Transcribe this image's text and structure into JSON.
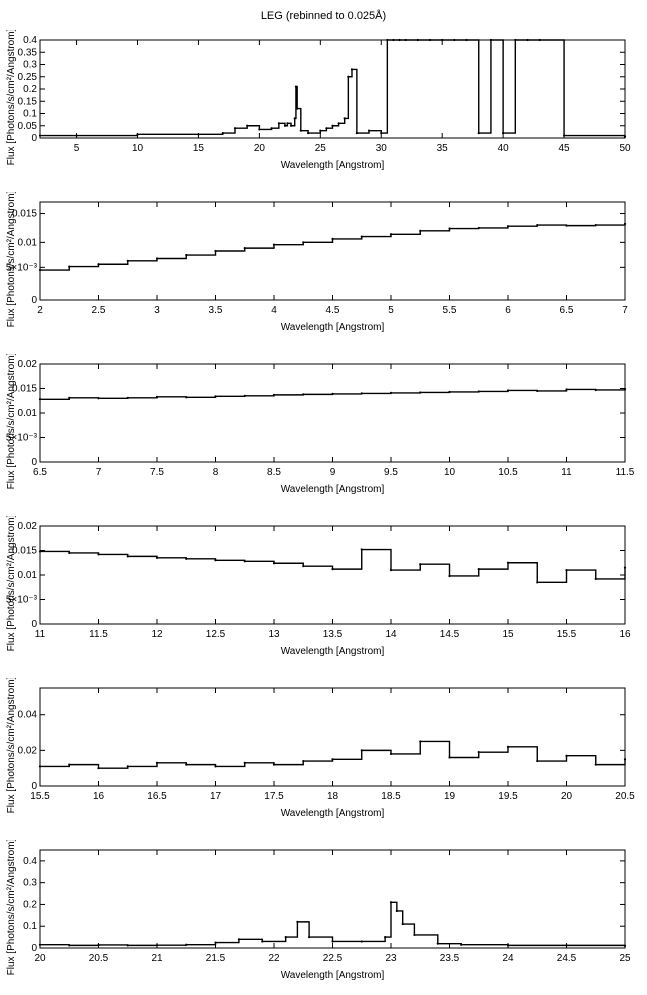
{
  "figure": {
    "title": "LEG (rebinned to 0.025Å)"
  },
  "chart_data": [
    {
      "type": "line",
      "style": "step",
      "title": "LEG (rebinned to 0.025Å)",
      "xlabel": "Wavelength [Angstrom]",
      "ylabel": "Flux [Photons/s/cm²/Angstrom]",
      "xlim": [
        2,
        50
      ],
      "ylim": [
        0,
        0.4
      ],
      "xticks": [
        "5",
        "10",
        "15",
        "20",
        "25",
        "30",
        "35",
        "40",
        "45",
        "50"
      ],
      "yticks": [
        "0",
        "0.05",
        "0.1",
        "0.15",
        "0.2",
        "0.25",
        "0.3",
        "0.35",
        "0.4"
      ],
      "x": [
        2,
        5,
        10,
        15,
        17,
        18,
        19,
        20,
        21,
        21.6,
        22.1,
        22.3,
        22.6,
        22.9,
        23.0,
        23.1,
        23.4,
        24,
        25,
        25.5,
        26,
        26.5,
        27,
        27.3,
        27.6,
        28,
        29,
        30,
        30.5,
        31,
        31.5,
        32,
        33,
        34,
        35,
        36,
        37,
        38,
        39,
        40,
        41,
        42,
        43,
        45,
        50
      ],
      "values": [
        0.01,
        0.01,
        0.015,
        0.015,
        0.02,
        0.04,
        0.05,
        0.035,
        0.04,
        0.06,
        0.05,
        0.06,
        0.05,
        0.08,
        0.21,
        0.12,
        0.03,
        0.02,
        0.03,
        0.04,
        0.05,
        0.06,
        0.08,
        0.25,
        0.28,
        0.02,
        0.03,
        0.02,
        0.4,
        0.4,
        0.4,
        0.4,
        0.4,
        0.4,
        0.4,
        0.4,
        0.4,
        0.02,
        0.4,
        0.02,
        0.4,
        0.4,
        0.4,
        0.01,
        0.005
      ]
    },
    {
      "type": "line",
      "style": "step",
      "xlabel": "Wavelength [Angstrom]",
      "ylabel": "Flux [Photons/s/cm²/Angstrom]",
      "xlim": [
        2,
        7
      ],
      "ylim": [
        0,
        0.017
      ],
      "xticks": [
        "2",
        "2.5",
        "3",
        "3.5",
        "4",
        "4.5",
        "5",
        "5.5",
        "6",
        "6.5",
        "7"
      ],
      "yticks": [
        "0",
        "5×10⁻³",
        "0.01",
        "0.015"
      ],
      "x": [
        2,
        2.25,
        2.5,
        2.75,
        3,
        3.25,
        3.5,
        3.75,
        4,
        4.25,
        4.5,
        4.75,
        5,
        5.25,
        5.5,
        5.75,
        6,
        6.25,
        6.5,
        6.75,
        7
      ],
      "values": [
        0.0052,
        0.0058,
        0.0062,
        0.0068,
        0.0072,
        0.0078,
        0.0085,
        0.009,
        0.0096,
        0.01,
        0.0106,
        0.011,
        0.0114,
        0.012,
        0.0124,
        0.0125,
        0.0128,
        0.013,
        0.0129,
        0.013,
        0.0132
      ]
    },
    {
      "type": "line",
      "style": "step",
      "xlabel": "Wavelength [Angstrom]",
      "ylabel": "Flux [Photons/s/cm²/Angstrom]",
      "xlim": [
        6.5,
        11.5
      ],
      "ylim": [
        0,
        0.02
      ],
      "xticks": [
        "6.5",
        "7",
        "7.5",
        "8",
        "8.5",
        "9",
        "9.5",
        "10",
        "10.5",
        "11",
        "11.5"
      ],
      "yticks": [
        "0",
        "5×10⁻³",
        "0.01",
        "0.015",
        "0.02"
      ],
      "x": [
        6.5,
        6.75,
        7,
        7.25,
        7.5,
        7.75,
        8,
        8.25,
        8.5,
        8.75,
        9,
        9.25,
        9.5,
        9.75,
        10,
        10.25,
        10.5,
        10.75,
        11,
        11.25,
        11.5
      ],
      "values": [
        0.0128,
        0.0131,
        0.013,
        0.0131,
        0.0133,
        0.0132,
        0.0134,
        0.0135,
        0.0137,
        0.0138,
        0.0139,
        0.014,
        0.0141,
        0.0142,
        0.0143,
        0.0144,
        0.0146,
        0.0145,
        0.0148,
        0.0147,
        0.0149
      ]
    },
    {
      "type": "line",
      "style": "step",
      "xlabel": "Wavelength [Angstrom]",
      "ylabel": "Flux [Photons/s/cm²/Angstrom]",
      "xlim": [
        11,
        16
      ],
      "ylim": [
        0,
        0.02
      ],
      "xticks": [
        "11",
        "11.5",
        "12",
        "12.5",
        "13",
        "13.5",
        "14",
        "14.5",
        "15",
        "15.5",
        "16"
      ],
      "yticks": [
        "0",
        "5×10⁻³",
        "0.01",
        "0.015",
        "0.02"
      ],
      "x": [
        11,
        11.25,
        11.5,
        11.75,
        12,
        12.25,
        12.5,
        12.75,
        13,
        13.25,
        13.5,
        13.75,
        14,
        14.25,
        14.5,
        14.75,
        15,
        15.25,
        15.5,
        15.75,
        16
      ],
      "values": [
        0.0148,
        0.0145,
        0.0142,
        0.0138,
        0.0135,
        0.0133,
        0.013,
        0.0128,
        0.0124,
        0.0118,
        0.0112,
        0.0152,
        0.011,
        0.0122,
        0.0098,
        0.0112,
        0.0125,
        0.0085,
        0.011,
        0.0092,
        0.0115
      ]
    },
    {
      "type": "line",
      "style": "step",
      "xlabel": "Wavelength [Angstrom]",
      "ylabel": "Flux [Photons/s/cm²/Angstrom]",
      "xlim": [
        15.5,
        20.5
      ],
      "ylim": [
        0,
        0.055
      ],
      "xticks": [
        "15.5",
        "16",
        "16.5",
        "17",
        "17.5",
        "18",
        "18.5",
        "19",
        "19.5",
        "20",
        "20.5"
      ],
      "yticks": [
        "0",
        "0.02",
        "0.04"
      ],
      "x": [
        15.5,
        15.75,
        16,
        16.25,
        16.5,
        16.75,
        17,
        17.25,
        17.5,
        17.75,
        18,
        18.25,
        18.5,
        18.75,
        19,
        19.25,
        19.5,
        19.75,
        20,
        20.25,
        20.5
      ],
      "values": [
        0.011,
        0.012,
        0.01,
        0.011,
        0.013,
        0.012,
        0.011,
        0.013,
        0.012,
        0.014,
        0.015,
        0.02,
        0.018,
        0.025,
        0.016,
        0.019,
        0.022,
        0.014,
        0.017,
        0.012,
        0.015
      ]
    },
    {
      "type": "line",
      "style": "step",
      "xlabel": "Wavelength [Angstrom]",
      "ylabel": "Flux [Photons/s/cm²/Angstrom]",
      "xlim": [
        20,
        25
      ],
      "ylim": [
        0,
        0.45
      ],
      "xticks": [
        "20",
        "20.5",
        "21",
        "21.5",
        "22",
        "22.5",
        "23",
        "23.5",
        "24",
        "24.5",
        "25"
      ],
      "yticks": [
        "0",
        "0.1",
        "0.2",
        "0.3",
        "0.4"
      ],
      "x": [
        20,
        20.25,
        20.5,
        20.75,
        21,
        21.25,
        21.5,
        21.7,
        21.9,
        22.1,
        22.2,
        22.3,
        22.5,
        22.75,
        22.95,
        23.0,
        23.05,
        23.1,
        23.2,
        23.4,
        23.6,
        24,
        24.5,
        25
      ],
      "values": [
        0.015,
        0.012,
        0.014,
        0.012,
        0.013,
        0.015,
        0.025,
        0.04,
        0.03,
        0.05,
        0.12,
        0.05,
        0.03,
        0.03,
        0.05,
        0.21,
        0.17,
        0.11,
        0.06,
        0.02,
        0.015,
        0.012,
        0.012,
        0.01
      ]
    }
  ]
}
